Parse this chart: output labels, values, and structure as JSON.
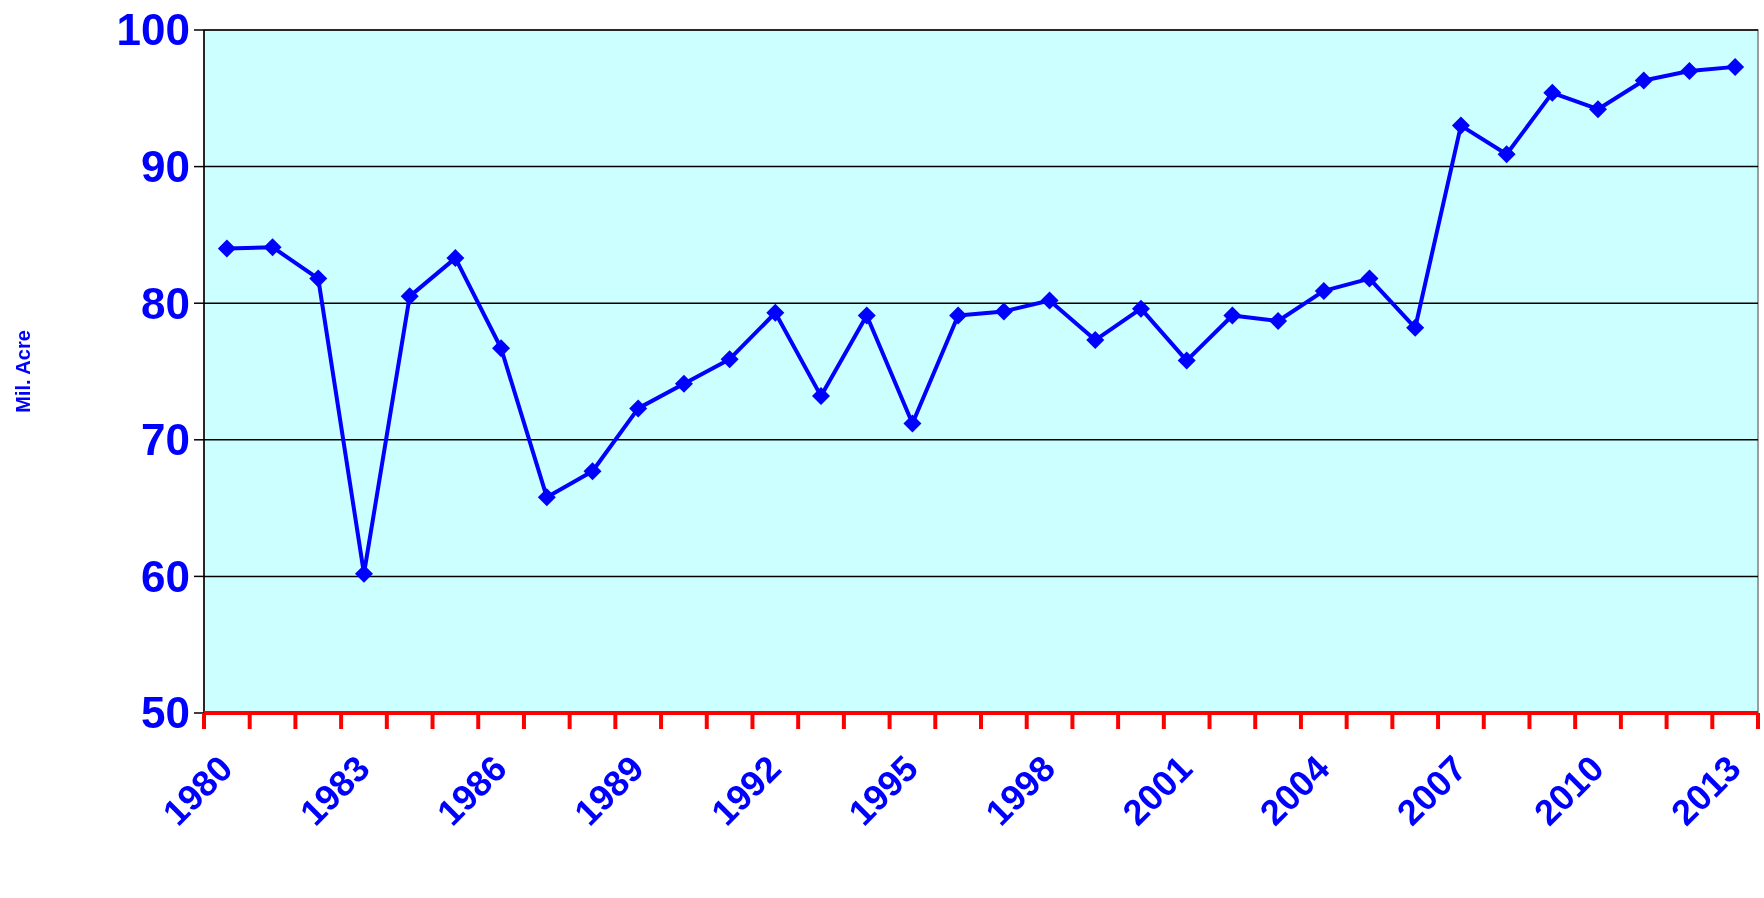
{
  "chart_data": {
    "type": "line",
    "ylabel": "Mil. Acre",
    "categories": [
      "1980",
      null,
      null,
      "1983",
      null,
      null,
      "1986",
      null,
      null,
      "1989",
      null,
      null,
      "1992",
      null,
      null,
      "1995",
      null,
      null,
      "1998",
      null,
      null,
      "2001",
      null,
      null,
      "2004",
      null,
      null,
      "2007",
      null,
      null,
      "2010",
      null,
      null,
      "2013"
    ],
    "series": [
      {
        "color": "#0000ff",
        "values": [
          84.0,
          84.1,
          81.8,
          60.2,
          80.5,
          83.3,
          76.7,
          65.8,
          67.7,
          72.3,
          74.1,
          75.9,
          79.3,
          73.2,
          79.1,
          71.2,
          79.1,
          79.4,
          80.2,
          77.3,
          79.6,
          75.8,
          79.1,
          78.7,
          80.9,
          81.8,
          78.2,
          93.0,
          90.9,
          95.4,
          94.2,
          96.3,
          97.0,
          97.3
        ]
      }
    ],
    "ylim": [
      50,
      100
    ],
    "yticks": [
      50,
      60,
      70,
      80,
      90,
      100
    ],
    "grid": "y",
    "marker": "diamond",
    "line_style": "solid"
  }
}
